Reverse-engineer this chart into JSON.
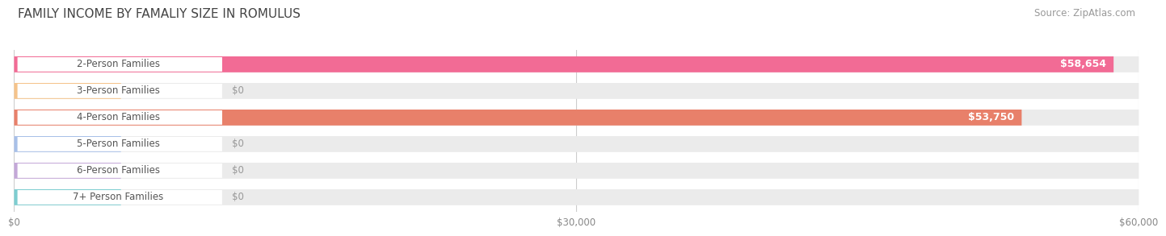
{
  "title": "FAMILY INCOME BY FAMALIY SIZE IN ROMULUS",
  "source": "Source: ZipAtlas.com",
  "categories": [
    "2-Person Families",
    "3-Person Families",
    "4-Person Families",
    "5-Person Families",
    "6-Person Families",
    "7+ Person Families"
  ],
  "values": [
    58654,
    0,
    53750,
    0,
    0,
    0
  ],
  "bar_colors": [
    "#f26b95",
    "#f5c38a",
    "#e8806a",
    "#a8c0e8",
    "#c4a8d8",
    "#7dcdd0"
  ],
  "value_labels": [
    "$58,654",
    "$0",
    "$53,750",
    "$0",
    "$0",
    "$0"
  ],
  "xlim": [
    0,
    60000
  ],
  "xticks": [
    0,
    30000,
    60000
  ],
  "xtick_labels": [
    "$0",
    "$30,000",
    "$60,000"
  ],
  "background_color": "#ffffff",
  "bar_bg_color": "#ebebeb",
  "title_fontsize": 11,
  "source_fontsize": 8.5,
  "label_fontsize": 8.5,
  "value_fontsize": 9
}
